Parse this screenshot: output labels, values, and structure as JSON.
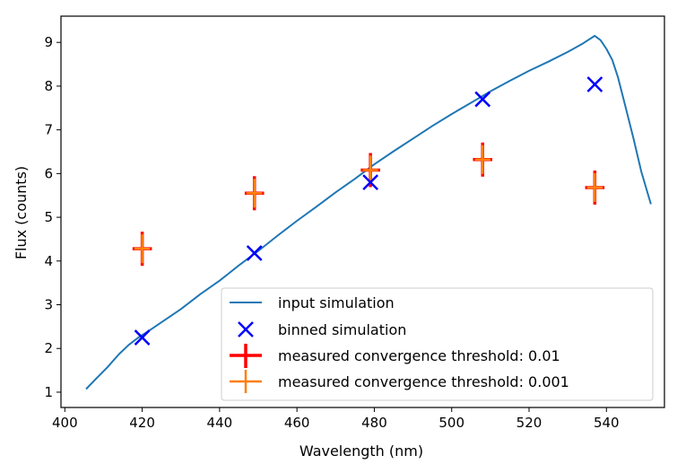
{
  "chart_data": {
    "type": "line",
    "title": "",
    "xlabel": "Wavelength (nm)",
    "ylabel": "Flux (counts)",
    "xlim": [
      399,
      555
    ],
    "ylim": [
      0.65,
      9.6
    ],
    "xticks": [
      400,
      420,
      440,
      460,
      480,
      500,
      520,
      540
    ],
    "yticks": [
      1,
      2,
      3,
      4,
      5,
      6,
      7,
      8,
      9
    ],
    "grid": false,
    "legend_position": "lower-right",
    "series": [
      {
        "name": "input simulation",
        "kind": "line",
        "color": "#1f77b4",
        "x": [
          405.5,
          408,
          411,
          414,
          416.5,
          419,
          422,
          426,
          430,
          435,
          440,
          445,
          450,
          455,
          460,
          465,
          470,
          475,
          480,
          485,
          490,
          495,
          500,
          505,
          510,
          515,
          520,
          525,
          530,
          534,
          537,
          538.5,
          540,
          541.5,
          543,
          545,
          547,
          549,
          551.5
        ],
        "y": [
          1.07,
          1.3,
          1.57,
          1.87,
          2.08,
          2.25,
          2.42,
          2.66,
          2.9,
          3.24,
          3.55,
          3.9,
          4.23,
          4.58,
          4.92,
          5.24,
          5.57,
          5.88,
          6.21,
          6.51,
          6.8,
          7.09,
          7.36,
          7.62,
          7.88,
          8.12,
          8.35,
          8.56,
          8.78,
          8.98,
          9.15,
          9.05,
          8.85,
          8.6,
          8.2,
          7.5,
          6.8,
          6.05,
          5.3
        ]
      },
      {
        "name": "binned simulation",
        "kind": "scatter",
        "marker": "x",
        "color": "#0000ff",
        "x": [
          420,
          449,
          479,
          508,
          537
        ],
        "y": [
          2.25,
          4.18,
          5.8,
          7.7,
          8.04
        ]
      },
      {
        "name": "measured convergence threshold: 0.01",
        "kind": "errorbar",
        "color": "#ff0000",
        "x": [
          420,
          449,
          479,
          508,
          537
        ],
        "y": [
          4.28,
          5.55,
          6.08,
          6.32,
          5.68
        ],
        "xerr": 2.5,
        "yerr": [
          0.39,
          0.39,
          0.39,
          0.39,
          0.39
        ]
      },
      {
        "name": "measured convergence threshold: 0.001",
        "kind": "errorbar",
        "color": "#ff7f0e",
        "x": [
          420,
          449,
          479,
          508,
          537
        ],
        "y": [
          4.28,
          5.55,
          6.08,
          6.32,
          5.68
        ],
        "xerr": 2.0,
        "yerr": [
          0.33,
          0.33,
          0.33,
          0.33,
          0.33
        ]
      }
    ]
  }
}
